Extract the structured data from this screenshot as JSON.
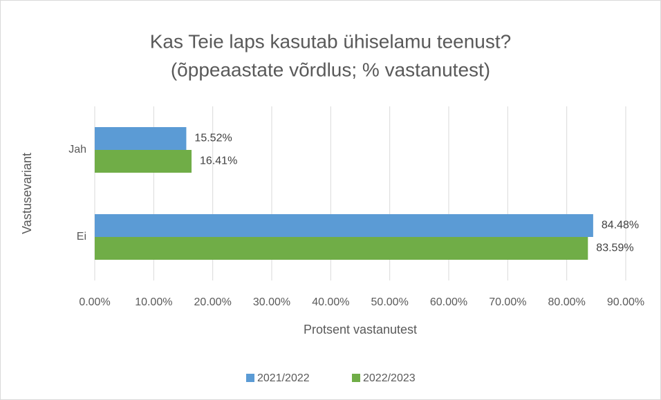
{
  "chart_data": {
    "type": "bar",
    "orientation": "horizontal",
    "title_lines": [
      "Kas Teie laps kasutab ühiselamu teenust?",
      "(õppeaastate võrdlus; % vastanutest)"
    ],
    "xlabel": "Protsent vastanutest",
    "ylabel": "Vastusevariant",
    "categories": [
      "Jah",
      "Ei"
    ],
    "series": [
      {
        "name": "2021/2022",
        "color": "#5b9bd5",
        "values": [
          15.52,
          84.48
        ],
        "value_labels": [
          "15.52%",
          "84.48%"
        ]
      },
      {
        "name": "2022/2023",
        "color": "#70ad47",
        "values": [
          16.41,
          83.59
        ],
        "value_labels": [
          "16.41%",
          "83.59%"
        ]
      }
    ],
    "xlim": [
      0,
      90
    ],
    "xticks": [
      {
        "value": 0,
        "label": "0.00%"
      },
      {
        "value": 10,
        "label": "10.00%"
      },
      {
        "value": 20,
        "label": "20.00%"
      },
      {
        "value": 30,
        "label": "30.00%"
      },
      {
        "value": 40,
        "label": "40.00%"
      },
      {
        "value": 50,
        "label": "50.00%"
      },
      {
        "value": 60,
        "label": "60.00%"
      },
      {
        "value": 70,
        "label": "70.00%"
      },
      {
        "value": 80,
        "label": "80.00%"
      },
      {
        "value": 90,
        "label": "90.00%"
      }
    ],
    "grid": true,
    "legend": "bottom"
  }
}
